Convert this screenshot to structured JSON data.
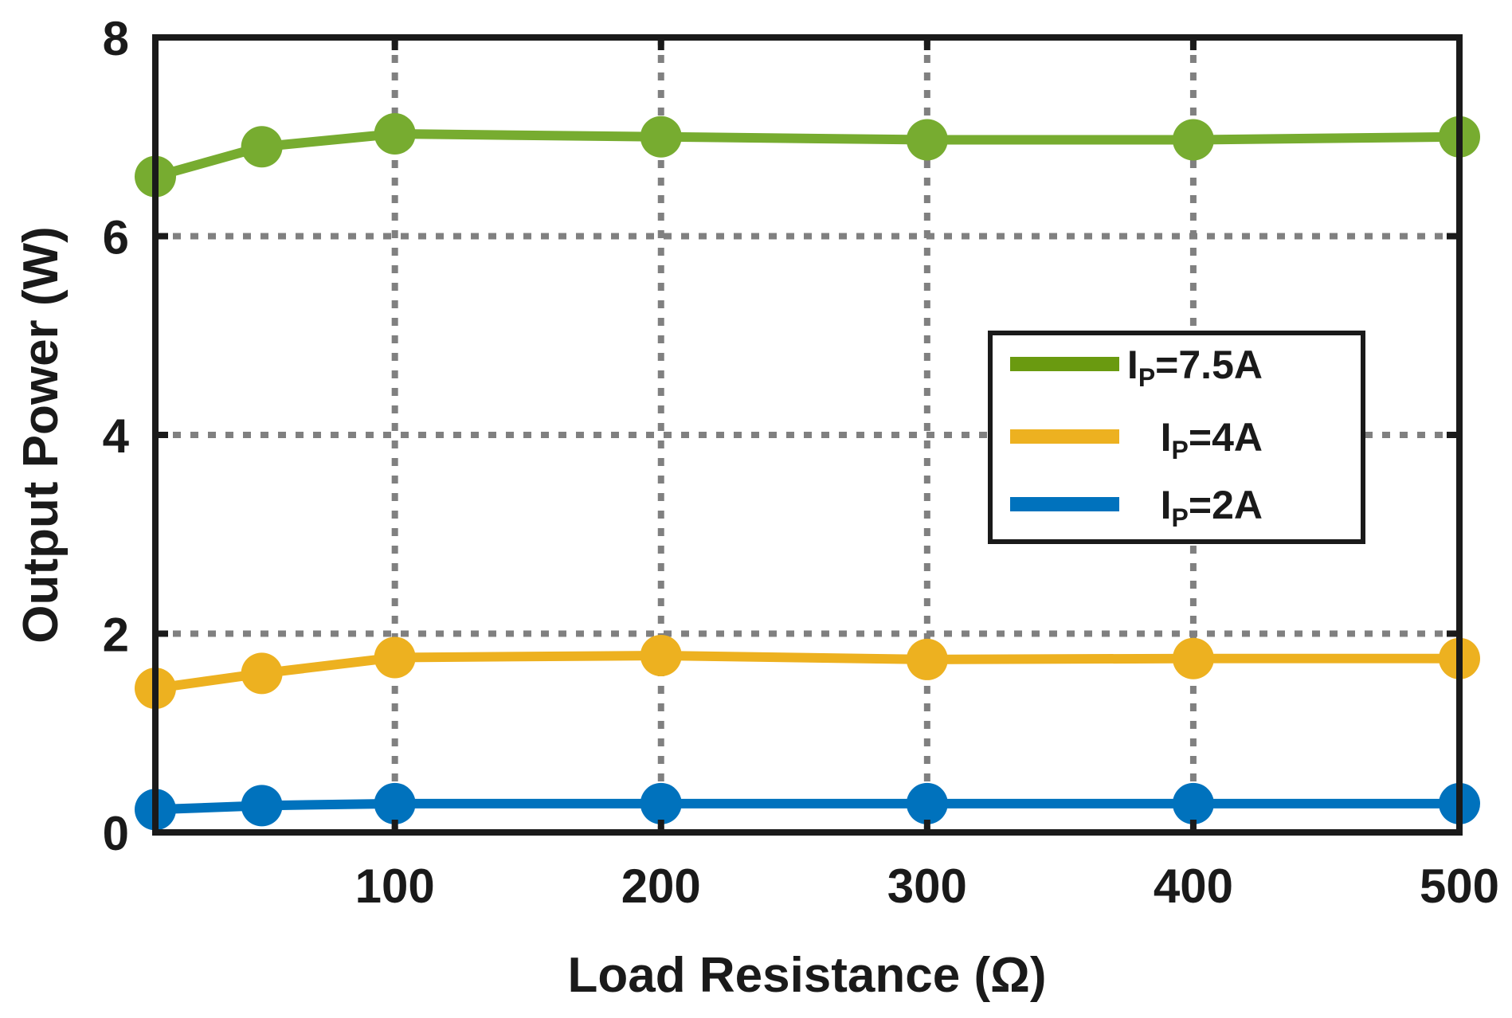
{
  "chart_data": {
    "type": "line",
    "title": "",
    "xlabel": "Load Resistance (Ω)",
    "ylabel": "Output Power (W)",
    "xlim": [
      10,
      500
    ],
    "ylim": [
      0,
      8
    ],
    "xticks": [
      100,
      200,
      300,
      400,
      500
    ],
    "yticks": [
      0,
      2,
      4,
      6,
      8
    ],
    "grid": true,
    "legend_position": "right-middle",
    "x": [
      10,
      50,
      100,
      200,
      300,
      400,
      500
    ],
    "series": [
      {
        "name": "IP=7.5A",
        "label_main": "I",
        "label_sub": "P",
        "label_rest": "=7.5A",
        "color": "#77AC30",
        "values": [
          6.6,
          6.9,
          7.03,
          7.0,
          6.97,
          6.97,
          7.0
        ]
      },
      {
        "name": "IP=4A",
        "label_main": "I",
        "label_sub": "P",
        "label_rest": "=4A",
        "color": "#EDB120",
        "values": [
          1.45,
          1.6,
          1.76,
          1.78,
          1.74,
          1.75,
          1.75
        ]
      },
      {
        "name": "IP=2A",
        "label_main": "I",
        "label_sub": "P",
        "label_rest": "=2A",
        "color": "#0072BD",
        "values": [
          0.23,
          0.27,
          0.29,
          0.29,
          0.29,
          0.29,
          0.29
        ]
      }
    ]
  }
}
